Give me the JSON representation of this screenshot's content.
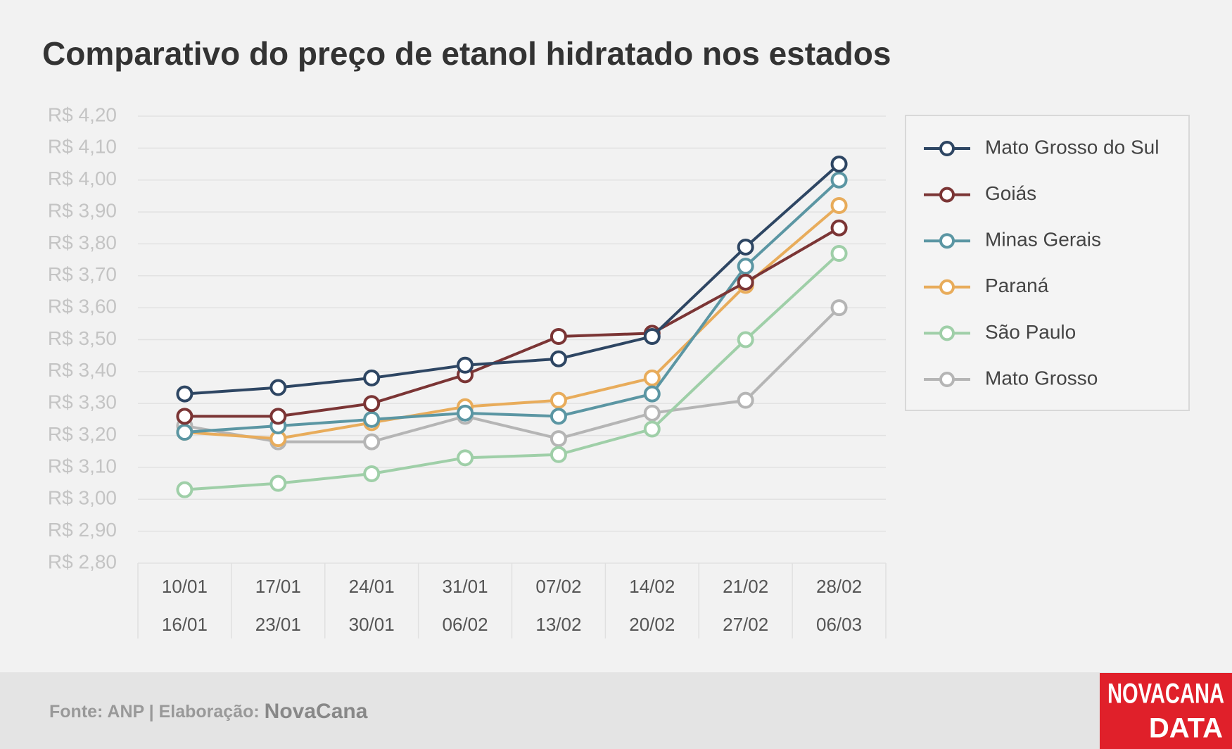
{
  "chart_data": {
    "type": "line",
    "title": "Comparativo do preço de etanol hidratado nos estados",
    "categories": [
      [
        "10/01",
        "16/01"
      ],
      [
        "17/01",
        "23/01"
      ],
      [
        "24/01",
        "30/01"
      ],
      [
        "31/01",
        "06/02"
      ],
      [
        "07/02",
        "13/02"
      ],
      [
        "14/02",
        "20/02"
      ],
      [
        "21/02",
        "27/02"
      ],
      [
        "28/02",
        "06/03"
      ]
    ],
    "series": [
      {
        "name": "Mato Grosso do Sul",
        "color": "#2e4663",
        "values": [
          3.33,
          3.35,
          3.38,
          3.42,
          3.44,
          3.51,
          3.79,
          4.05
        ]
      },
      {
        "name": "Goiás",
        "color": "#7b3535",
        "values": [
          3.26,
          3.26,
          3.3,
          3.39,
          3.51,
          3.52,
          3.68,
          3.85
        ]
      },
      {
        "name": "Minas Gerais",
        "color": "#5b96a3",
        "values": [
          3.21,
          3.23,
          3.25,
          3.27,
          3.26,
          3.33,
          3.73,
          4.0
        ]
      },
      {
        "name": "Paraná",
        "color": "#e8ac5b",
        "values": [
          3.21,
          3.19,
          3.24,
          3.29,
          3.31,
          3.38,
          3.67,
          3.92
        ]
      },
      {
        "name": "São Paulo",
        "color": "#9fcfa8",
        "values": [
          3.03,
          3.05,
          3.08,
          3.13,
          3.14,
          3.22,
          3.5,
          3.77
        ]
      },
      {
        "name": "Mato Grosso",
        "color": "#b5b5b5",
        "values": [
          3.23,
          3.18,
          3.18,
          3.26,
          3.19,
          3.27,
          3.31,
          3.6
        ]
      }
    ],
    "ylim": [
      2.8,
      4.2
    ],
    "yticks": [
      {
        "value": 2.8,
        "label": "R$ 2,80"
      },
      {
        "value": 2.9,
        "label": "R$ 2,90"
      },
      {
        "value": 3.0,
        "label": "R$ 3,00"
      },
      {
        "value": 3.1,
        "label": "R$ 3,10"
      },
      {
        "value": 3.2,
        "label": "R$ 3,20"
      },
      {
        "value": 3.3,
        "label": "R$ 3,30"
      },
      {
        "value": 3.4,
        "label": "R$ 3,40"
      },
      {
        "value": 3.5,
        "label": "R$ 3,50"
      },
      {
        "value": 3.6,
        "label": "R$ 3,60"
      },
      {
        "value": 3.7,
        "label": "R$ 3,70"
      },
      {
        "value": 3.8,
        "label": "R$ 3,80"
      },
      {
        "value": 3.9,
        "label": "R$ 3,90"
      },
      {
        "value": 4.0,
        "label": "R$ 4,00"
      },
      {
        "value": 4.1,
        "label": "R$ 4,10"
      },
      {
        "value": 4.2,
        "label": "R$ 4,20"
      }
    ],
    "grid": true,
    "legend": "right"
  },
  "footer": {
    "source": "Fonte: ANP | Elaboração:",
    "brand": "NovaCana"
  },
  "logo": {
    "line1": "NOVACANA",
    "line2": "DATA"
  }
}
